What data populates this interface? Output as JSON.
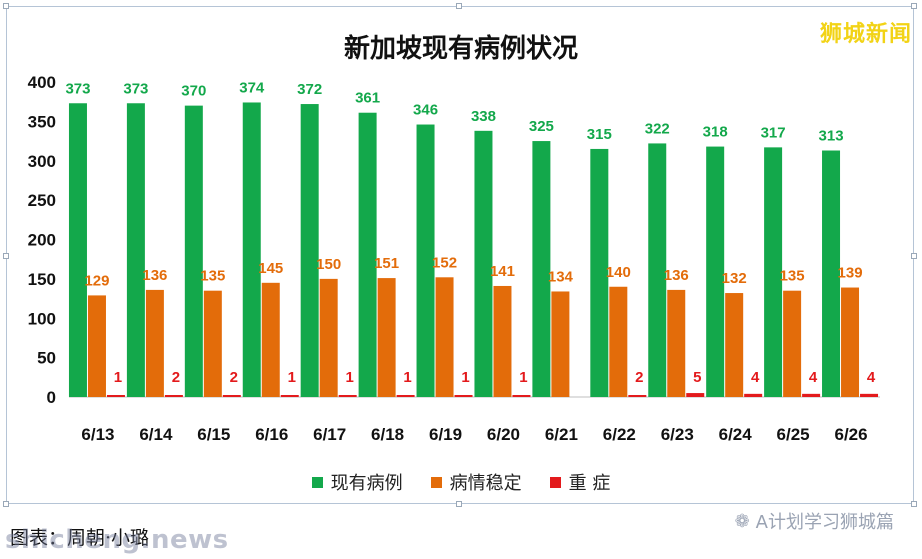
{
  "logo_text": "狮城新闻",
  "credit_text": "图表：周朝·小璐",
  "watermark_text": "shicheng.news",
  "wechat_text": "A计划学习狮城篇",
  "chart_data": {
    "type": "bar",
    "title": "新加坡现有病例状况",
    "categories": [
      "6/13",
      "6/14",
      "6/15",
      "6/16",
      "6/17",
      "6/18",
      "6/19",
      "6/20",
      "6/21",
      "6/22",
      "6/23",
      "6/24",
      "6/25",
      "6/26"
    ],
    "series": [
      {
        "name": "现有病例",
        "color": "#13a84b",
        "label_color": "#13a84b",
        "values": [
          373,
          373,
          370,
          374,
          372,
          361,
          346,
          338,
          325,
          315,
          322,
          318,
          317,
          313
        ]
      },
      {
        "name": "病情稳定",
        "color": "#e36c0a",
        "label_color": "#e36c0a",
        "values": [
          129,
          136,
          135,
          145,
          150,
          151,
          152,
          141,
          134,
          140,
          136,
          132,
          135,
          139
        ]
      },
      {
        "name": "重 症",
        "color": "#e31a1c",
        "label_color": "#e31a1c",
        "values": [
          1,
          2,
          2,
          1,
          1,
          1,
          1,
          1,
          null,
          2,
          5,
          4,
          4,
          4
        ]
      }
    ],
    "yticks": [
      0,
      50,
      100,
      150,
      200,
      250,
      300,
      350,
      400
    ],
    "ylim": [
      0,
      400
    ],
    "grid": false,
    "legend_position": "bottom"
  }
}
